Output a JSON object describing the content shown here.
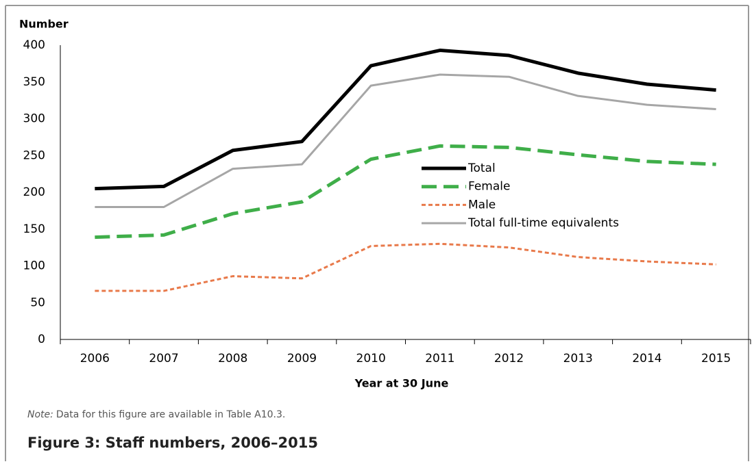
{
  "chart_data": {
    "type": "line",
    "y_label": "Number",
    "x_label": "Year at 30 June",
    "note_label": "Note:",
    "note_text": "Data for this figure are available in Table A10.3.",
    "caption": "Figure 3: Staff numbers, 2006–2015",
    "categories": [
      "2006",
      "2007",
      "2008",
      "2009",
      "2010",
      "2011",
      "2012",
      "2013",
      "2014",
      "2015"
    ],
    "series": [
      {
        "name": "Total",
        "color": "#000000",
        "values": [
          205,
          208,
          257,
          269,
          372,
          393,
          386,
          362,
          347,
          339
        ]
      },
      {
        "name": "Female",
        "color": "#3fae49",
        "values": [
          139,
          142,
          171,
          187,
          245,
          263,
          261,
          251,
          242,
          238
        ]
      },
      {
        "name": "Male",
        "color": "#e8794a",
        "values": [
          66,
          66,
          86,
          83,
          127,
          130,
          125,
          112,
          106,
          102
        ]
      },
      {
        "name": "Total full-time equivalents",
        "color": "#a6a6a6",
        "values": [
          180,
          180,
          232,
          238,
          345,
          360,
          357,
          331,
          319,
          313
        ]
      }
    ],
    "ylim": [
      0,
      400
    ],
    "yticks": [
      0,
      50,
      100,
      150,
      200,
      250,
      300,
      350,
      400
    ],
    "grid": false,
    "legend": "center"
  }
}
